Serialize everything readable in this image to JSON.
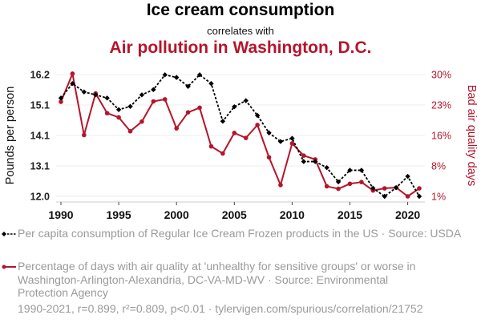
{
  "header": {
    "title": "Ice cream consumption",
    "connector": "correlates with",
    "subtitle": "Air pollution in Washington, D.C."
  },
  "colors": {
    "series1": "#000000",
    "series2": "#b5152b",
    "grid": "#eeeeee",
    "legend_text": "#9a9a9a"
  },
  "legend": {
    "items": [
      {
        "label": "Per capita consumption of Regular Ice Cream Frozen products in the US · Source: USDA"
      },
      {
        "label": "Percentage of days with air quality at 'unhealthy for sensitive groups' or worse in Washington-Arlington-Alexandria, DC-VA-MD-WV · Source: Environmental Protection Agency"
      }
    ]
  },
  "footer": "1990-2021, r=0.899, r²=0.809, p<0.01 · tylervigen.com/spurious/correlation/21752",
  "chart_data": {
    "type": "line",
    "title": "Ice cream consumption correlates with Air pollution in Washington, D.C.",
    "xlabel": "",
    "ylabel": "Pounds per person",
    "ylabel_right": "Bad air quality days",
    "x": [
      1990,
      1991,
      1992,
      1993,
      1994,
      1995,
      1996,
      1997,
      1998,
      1999,
      2000,
      2001,
      2002,
      2003,
      2004,
      2005,
      2006,
      2007,
      2008,
      2009,
      2010,
      2011,
      2012,
      2013,
      2014,
      2015,
      2016,
      2017,
      2018,
      2019,
      2020,
      2021
    ],
    "xlim": [
      1990,
      2021
    ],
    "xticks": [
      1990,
      1995,
      2000,
      2005,
      2010,
      2015,
      2020
    ],
    "ylim": [
      12.0,
      16.2
    ],
    "yticks": [
      {
        "value": 12.0,
        "label": "12.0"
      },
      {
        "value": 13.05,
        "label": "13.1"
      },
      {
        "value": 14.1,
        "label": "14.1"
      },
      {
        "value": 15.15,
        "label": "15.1"
      },
      {
        "value": 16.2,
        "label": "16.2"
      }
    ],
    "ylim_right": [
      1,
      30
    ],
    "yticks_right": [
      {
        "value": 1,
        "label": "1%"
      },
      {
        "value": 8.25,
        "label": "8%"
      },
      {
        "value": 15.5,
        "label": "16%"
      },
      {
        "value": 22.75,
        "label": "23%"
      },
      {
        "value": 30,
        "label": "30%"
      }
    ],
    "grid": true,
    "legend_position": "bottom",
    "series": [
      {
        "name": "Per capita consumption of Regular Ice Cream Frozen products in the US",
        "axis": "left",
        "style": "dashed-diamond",
        "values": [
          15.39,
          15.89,
          15.6,
          15.5,
          15.39,
          14.99,
          15.1,
          15.5,
          15.68,
          16.19,
          16.1,
          15.79,
          16.19,
          15.89,
          14.59,
          15.09,
          15.3,
          14.79,
          14.19,
          13.89,
          14.0,
          13.2,
          13.2,
          12.99,
          12.5,
          12.9,
          12.9,
          12.28,
          12.0,
          12.3,
          12.69,
          12.0
        ]
      },
      {
        "name": "Percentage of days with air quality at 'unhealthy for sensitive groups' or worse",
        "axis": "right",
        "style": "solid-dot",
        "values": [
          23.5,
          30.2,
          15.6,
          25.5,
          20.8,
          19.8,
          16.5,
          18.8,
          23.6,
          24.1,
          17.2,
          21.0,
          22.1,
          12.9,
          11.2,
          16.1,
          14.9,
          18.0,
          10.3,
          3.7,
          13.6,
          10.7,
          9.8,
          3.4,
          2.8,
          4.0,
          4.4,
          2.4,
          2.9,
          3.1,
          1.0,
          2.9
        ]
      }
    ]
  }
}
